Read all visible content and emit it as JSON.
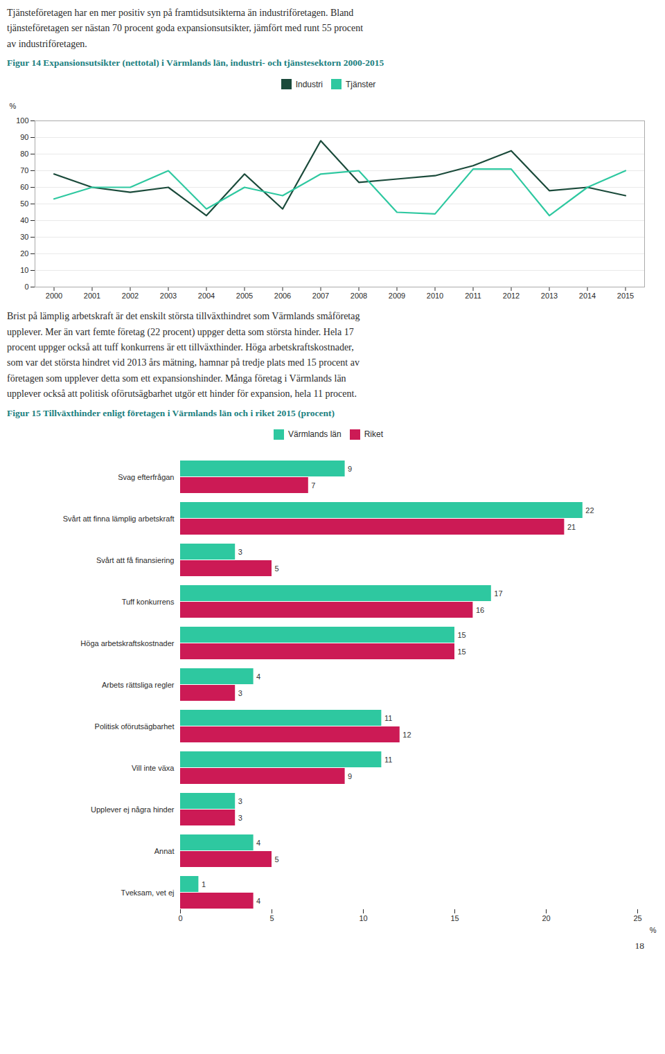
{
  "chart_data": [
    {
      "type": "line",
      "title": "Figur 14 Expansionsutsikter (nettotal) i Värmlands län, industri- och tjänstesektorn 2000-2015",
      "x": [
        2000,
        2001,
        2002,
        2003,
        2004,
        2005,
        2006,
        2007,
        2008,
        2009,
        2010,
        2011,
        2012,
        2013,
        2014,
        2015
      ],
      "xlim": [
        1999.5,
        2015.5
      ],
      "xticks": [
        2000,
        2001,
        2002,
        2003,
        2004,
        2005,
        2006,
        2007,
        2008,
        2009,
        2010,
        2011,
        2012,
        2013,
        2014,
        2015
      ],
      "ylim": [
        0,
        100
      ],
      "yticks": [
        0,
        10,
        20,
        30,
        40,
        50,
        60,
        70,
        80,
        90,
        100
      ],
      "ylabel": "%",
      "grid": true,
      "legend": "top",
      "series": [
        {
          "name": "Industri",
          "color": "#1a4a3a",
          "values": [
            68,
            60,
            57,
            60,
            43,
            68,
            47,
            88,
            63,
            65,
            67,
            73,
            82,
            58,
            60,
            55
          ]
        },
        {
          "name": "Tjänster",
          "color": "#2ec8a0",
          "values": [
            53,
            60,
            60,
            70,
            47,
            60,
            55,
            68,
            70,
            45,
            44,
            71,
            71,
            43,
            60,
            70
          ]
        }
      ]
    },
    {
      "type": "bar",
      "orientation": "horizontal",
      "title": "Figur 15 Tillväxthinder enligt företagen i Värmlands län och i riket 2015 (procent)",
      "categories": [
        "Svag efterfrågan",
        "Svårt att finna lämplig arbetskraft",
        "Svårt att få finansiering",
        "Tuff konkurrens",
        "Höga arbetskraftskostnader",
        "Arbets rättsliga regler",
        "Politisk oförutsägbarhet",
        "Vill inte växa",
        "Upplever ej några hinder",
        "Annat",
        "Tveksam, vet ej"
      ],
      "xlim": [
        0,
        25
      ],
      "xticks": [
        0,
        5,
        10,
        15,
        20,
        25
      ],
      "xlabel": "%",
      "grid": false,
      "legend": "top",
      "data_labels": true,
      "series": [
        {
          "name": "Värmlands län",
          "color": "#2ec8a0",
          "values": [
            9,
            22,
            3,
            17,
            15,
            4,
            11,
            11,
            3,
            4,
            1
          ]
        },
        {
          "name": "Riket",
          "color": "#cc1a55",
          "values": [
            7,
            21,
            5,
            16,
            15,
            3,
            12,
            9,
            3,
            5,
            4
          ]
        }
      ]
    }
  ],
  "paragraphs": [
    "Tjänsteföretagen har en mer positiv syn på framtidsutsikterna än industriföretagen. Bland\ntjänsteföretagen ser nästan 70 procent goda expansionsutsikter, jämfört med runt 55 procent\nav industriföretagen.",
    "Brist på lämplig arbetskraft är det enskilt största tillväxthindret som Värmlands småföretag\nupplever. Mer än vart femte företag (22 procent) uppger detta som största hinder. Hela 17\nprocent uppger också att tuff konkurrens är ett tillväxthinder. Höga arbetskraftskostnader,\nsom var det största hindret vid 2013 års mätning, hamnar på tredje plats med 15 procent av\nföretagen som upplever detta som ett expansionshinder. Många företag i Värmlands län\nupplever också att politisk oförutsägbarhet utgör ett hinder för expansion, hela 11 procent."
  ],
  "page_number": "18"
}
